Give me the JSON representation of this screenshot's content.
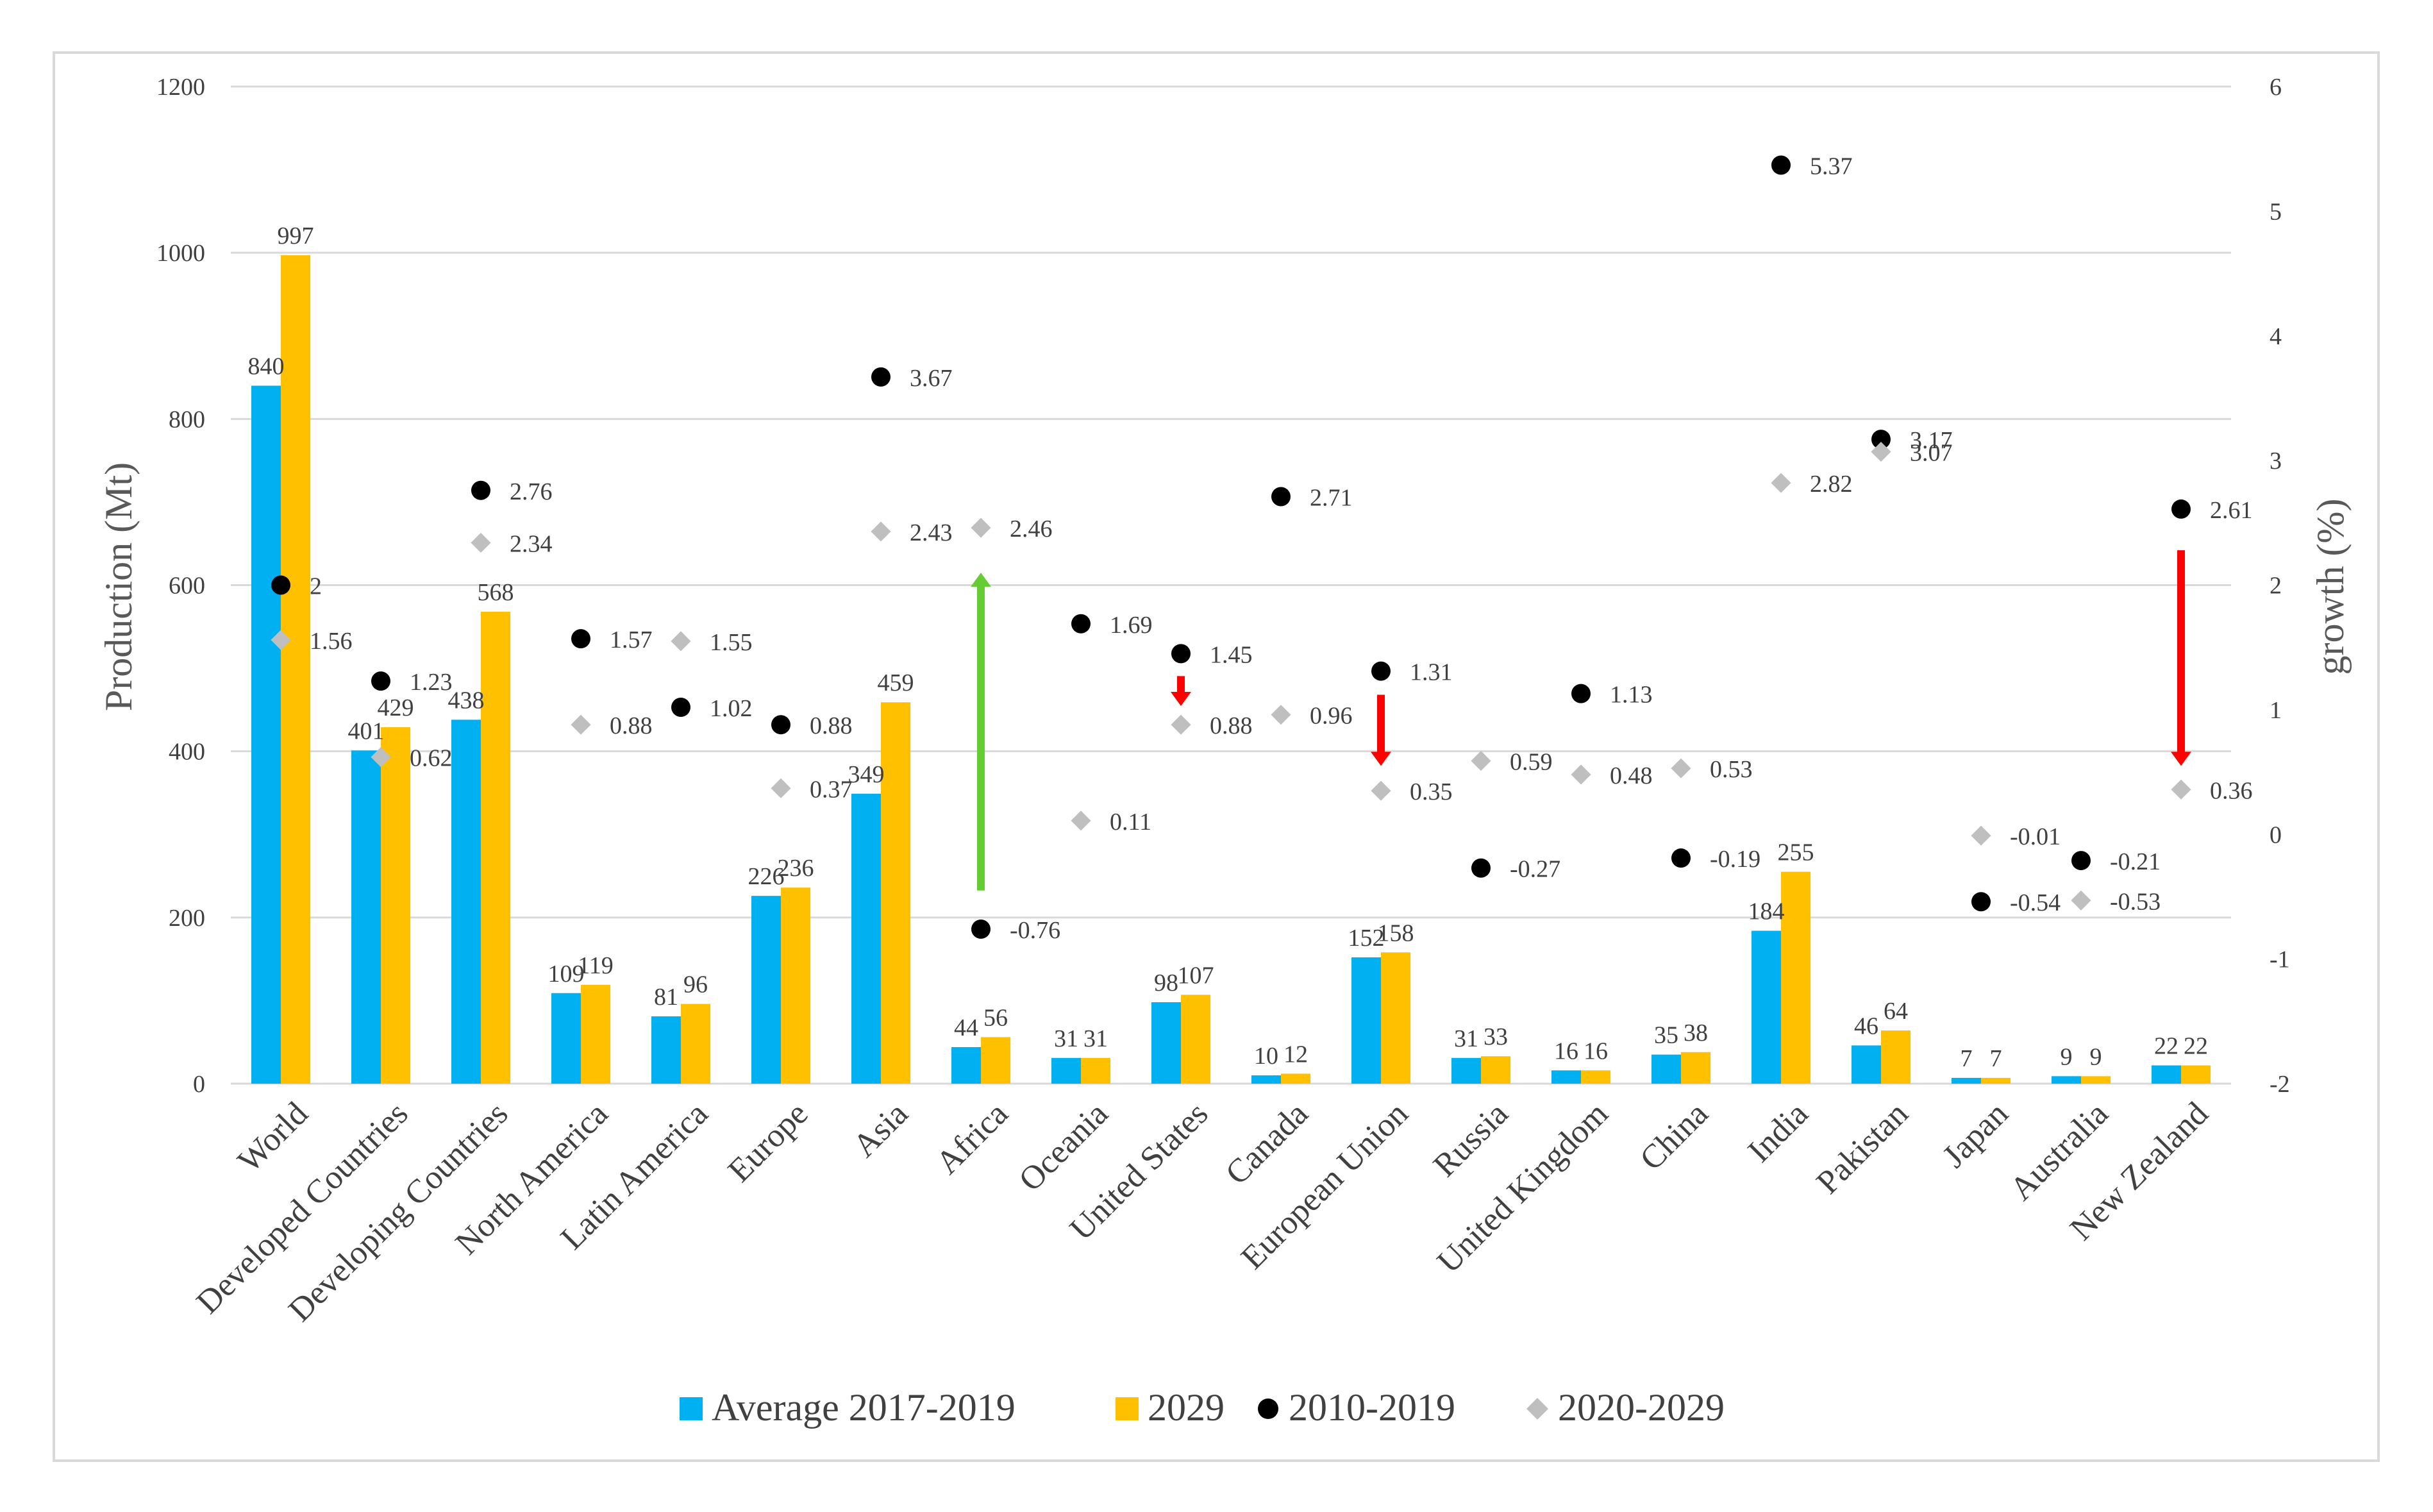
{
  "chart_data": {
    "type": "bar",
    "categories": [
      "World",
      "Developed Countries",
      "Developing Countries",
      "North America",
      "Latin America",
      "Europe",
      "Asia",
      "Africa",
      "Oceania",
      "United States",
      "Canada",
      "European Union",
      "Russia",
      "United Kingdom",
      "China",
      "India",
      "Pakistan",
      "Japan",
      "Australia",
      "New Zealand"
    ],
    "series": [
      {
        "name": "Average 2017-2019",
        "kind": "bar",
        "axis": "left",
        "color": "#00b0f0",
        "values": [
          840,
          401,
          438,
          109,
          81,
          226,
          349,
          44,
          31,
          98,
          10,
          152,
          31,
          16,
          35,
          184,
          46,
          7,
          9,
          22
        ]
      },
      {
        "name": "2029",
        "kind": "bar",
        "axis": "left",
        "color": "#ffc000",
        "values": [
          997,
          429,
          568,
          119,
          96,
          236,
          459,
          56,
          31,
          107,
          12,
          158,
          33,
          16,
          38,
          255,
          64,
          7,
          9,
          22
        ]
      },
      {
        "name": "2010-2019",
        "kind": "marker",
        "axis": "right",
        "color": "#000000",
        "values": [
          2,
          1.23,
          2.76,
          1.57,
          1.02,
          0.88,
          3.67,
          -0.76,
          1.69,
          1.45,
          2.71,
          1.31,
          -0.27,
          1.13,
          -0.19,
          5.37,
          3.17,
          -0.54,
          -0.21,
          2.61
        ]
      },
      {
        "name": "2020-2029",
        "kind": "marker",
        "axis": "right",
        "color": "#bfbfbf",
        "values": [
          1.56,
          0.62,
          2.34,
          0.88,
          1.55,
          0.37,
          2.43,
          2.46,
          0.11,
          0.88,
          0.96,
          0.35,
          0.59,
          0.48,
          0.53,
          2.82,
          3.07,
          -0.01,
          -0.53,
          0.36
        ]
      }
    ],
    "left_axis": {
      "title": "Production (Mt)",
      "min": 0,
      "max": 1200,
      "ticks": [
        "0",
        "200",
        "400",
        "600",
        "800",
        "1000",
        "1200"
      ]
    },
    "right_axis": {
      "title": "growth (%)",
      "min": -2,
      "max": 6,
      "ticks": [
        "-2",
        "-1",
        "0",
        "1",
        "2",
        "3",
        "4",
        "5",
        "6"
      ]
    },
    "grid": true,
    "legend_position": "bottom",
    "arrows": [
      {
        "category": "Africa",
        "from": -0.45,
        "to": 2.1,
        "color": "#66cc33",
        "direction": "up"
      },
      {
        "category": "United States",
        "from": 1.27,
        "to": 1.03,
        "color": "#ff0000",
        "direction": "down"
      },
      {
        "category": "European Union",
        "from": 1.12,
        "to": 0.55,
        "color": "#ff0000",
        "direction": "down"
      },
      {
        "category": "New Zealand",
        "from": 2.28,
        "to": 0.55,
        "color": "#ff0000",
        "direction": "down"
      }
    ]
  }
}
